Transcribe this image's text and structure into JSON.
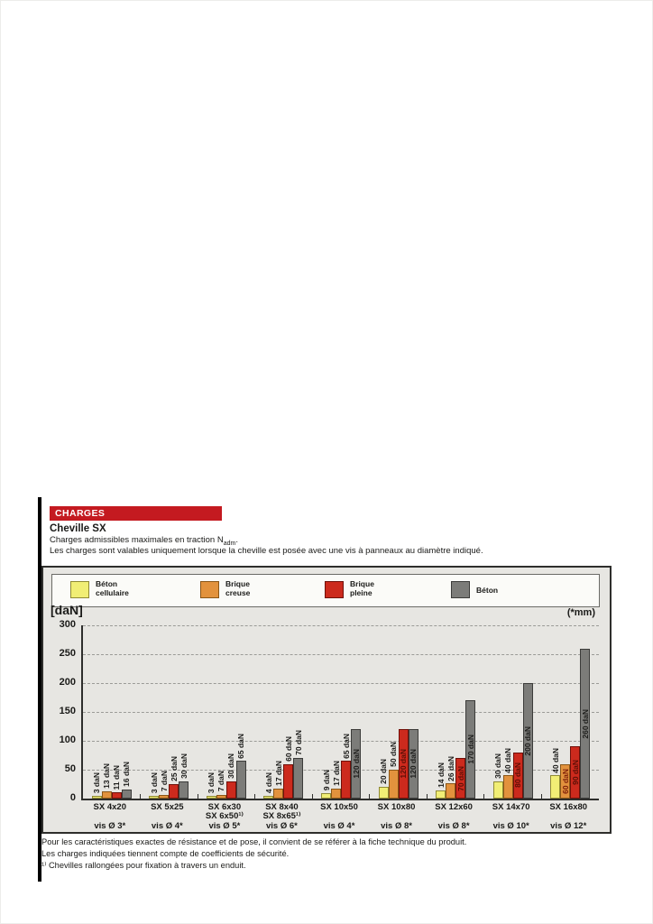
{
  "page": {
    "banner": "CHARGES",
    "title": "Cheville SX",
    "subtitle_main": "Charges admissibles maximales en traction N",
    "subtitle_sub": "adm",
    "subtitle_tail": ".",
    "description": "Les charges sont valables uniquement lorsque la cheville est posée avec une vis à panneaux au diamètre indiqué.",
    "footnotes": [
      "Pour les caractéristiques exactes de résistance et de pose, il convient de se référer à la fiche technique du produit.",
      "Les charges indiquées tiennent compte de coefficients de sécurité.",
      "¹⁾ Chevilles rallongées pour fixation à travers un enduit."
    ]
  },
  "legend": {
    "items": [
      {
        "label_line1": "Béton",
        "label_line2": "cellulaire",
        "color": "#f1ee75",
        "border": "#8f8a35"
      },
      {
        "label_line1": "Brique",
        "label_line2": "creuse",
        "color": "#e2923d",
        "border": "#8a5617"
      },
      {
        "label_line1": "Brique",
        "label_line2": "pleine",
        "color": "#cc2a1d",
        "border": "#701009"
      },
      {
        "label_line1": "Béton",
        "label_line2": "",
        "color": "#7c7c79",
        "border": "#3c3c3a"
      }
    ]
  },
  "chart_data": {
    "type": "bar",
    "unit_left": "[daN]",
    "unit_right": "(*mm)",
    "ylim": [
      0,
      300
    ],
    "yticks": [
      0,
      50,
      100,
      150,
      200,
      250,
      300
    ],
    "grid": "horizontal-dashed",
    "legend_position": "top",
    "value_suffix": " daN",
    "series": [
      {
        "name": "Béton cellulaire",
        "color": "#f1ee75",
        "border": "#8f8a35",
        "inside_label_color": "#3a3a10",
        "values": [
          3,
          3,
          3,
          4,
          9,
          20,
          14,
          30,
          40
        ]
      },
      {
        "name": "Brique creuse",
        "color": "#e2923d",
        "border": "#8a5617",
        "inside_label_color": "#7c1c08",
        "values": [
          13,
          7,
          7,
          17,
          17,
          50,
          26,
          40,
          60
        ]
      },
      {
        "name": "Brique pleine",
        "color": "#cc2a1d",
        "border": "#701009",
        "inside_label_color": "#5c0f06",
        "values": [
          11,
          25,
          30,
          60,
          65,
          120,
          70,
          80,
          90
        ]
      },
      {
        "name": "Béton",
        "color": "#7c7c79",
        "border": "#3c3c3a",
        "inside_label_color": "#1d1d1b",
        "values": [
          16,
          30,
          65,
          70,
          120,
          120,
          170,
          200,
          260
        ]
      }
    ],
    "groups": [
      {
        "name_lines": [
          "SX 4x20"
        ],
        "vis": "vis Ø 3*",
        "label_inside": [
          false,
          false,
          false,
          false
        ]
      },
      {
        "name_lines": [
          "SX 5x25"
        ],
        "vis": "vis Ø 4*",
        "label_inside": [
          false,
          false,
          false,
          false
        ]
      },
      {
        "name_lines": [
          "SX 6x30",
          "SX 6x50¹⁾"
        ],
        "vis": "vis Ø 5*",
        "label_inside": [
          false,
          false,
          false,
          false
        ]
      },
      {
        "name_lines": [
          "SX 8x40",
          "SX 8x65¹⁾"
        ],
        "vis": "vis Ø 6*",
        "label_inside": [
          false,
          false,
          false,
          false
        ]
      },
      {
        "name_lines": [
          "SX 10x50"
        ],
        "vis": "vis Ø 4*",
        "label_inside": [
          false,
          false,
          false,
          true
        ]
      },
      {
        "name_lines": [
          "SX 10x80"
        ],
        "vis": "vis Ø 8*",
        "label_inside": [
          false,
          false,
          true,
          true
        ]
      },
      {
        "name_lines": [
          "SX 12x60"
        ],
        "vis": "vis Ø 8*",
        "label_inside": [
          false,
          false,
          true,
          true
        ]
      },
      {
        "name_lines": [
          "SX 14x70"
        ],
        "vis": "vis Ø 10*",
        "label_inside": [
          false,
          false,
          true,
          true
        ]
      },
      {
        "name_lines": [
          "SX 16x80"
        ],
        "vis": "vis Ø 12*",
        "label_inside": [
          false,
          true,
          true,
          true
        ]
      }
    ]
  }
}
